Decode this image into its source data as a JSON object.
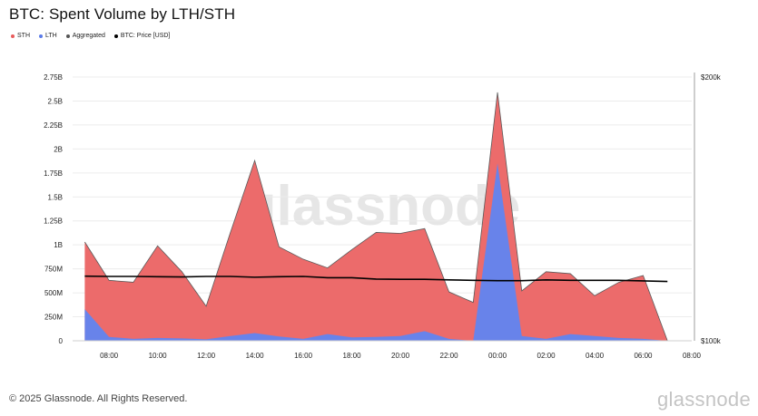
{
  "chart_data": {
    "type": "area",
    "title": "BTC: Spent Volume by LTH/STH",
    "legend": [
      {
        "name": "STH",
        "color": "#e85c5c"
      },
      {
        "name": "LTH",
        "color": "#5b7be8"
      },
      {
        "name": "Aggregated",
        "color": "#555555"
      },
      {
        "name": "BTC: Price [USD]",
        "color": "#000000"
      }
    ],
    "x_ticks": [
      "08:00",
      "10:00",
      "12:00",
      "14:00",
      "16:00",
      "18:00",
      "20:00",
      "22:00",
      "00:00",
      "02:00",
      "04:00",
      "06:00",
      "08:00"
    ],
    "x_hours": [
      7,
      8,
      9,
      10,
      11,
      12,
      13,
      14,
      15,
      16,
      17,
      18,
      19,
      20,
      21,
      22,
      23,
      24,
      25,
      26,
      27,
      28,
      29,
      30,
      31
    ],
    "y_left_ticks": [
      "0",
      "250M",
      "500M",
      "750M",
      "1B",
      "1.25B",
      "1.5B",
      "1.75B",
      "2B",
      "2.25B",
      "2.5B",
      "2.75B"
    ],
    "y_left_range": [
      0,
      2750000000
    ],
    "y_right_ticks": [
      "$100k",
      "$200k"
    ],
    "y_right_range": [
      100000,
      200000
    ],
    "series": [
      {
        "name": "Aggregated",
        "values": [
          1030000000,
          630000000,
          610000000,
          990000000,
          720000000,
          360000000,
          1130000000,
          1880000000,
          980000000,
          850000000,
          760000000,
          950000000,
          1130000000,
          1120000000,
          1170000000,
          510000000,
          400000000,
          2590000000,
          520000000,
          720000000,
          700000000,
          470000000,
          610000000,
          680000000,
          0
        ]
      },
      {
        "name": "LTH",
        "values": [
          330000000,
          40000000,
          20000000,
          30000000,
          25000000,
          15000000,
          50000000,
          80000000,
          45000000,
          20000000,
          70000000,
          35000000,
          40000000,
          50000000,
          100000000,
          20000000,
          0,
          1850000000,
          50000000,
          20000000,
          70000000,
          50000000,
          30000000,
          20000000,
          0
        ]
      },
      {
        "name": "BTC: Price [USD]",
        "values": [
          124500,
          124400,
          124400,
          124300,
          124200,
          124400,
          124400,
          124100,
          124300,
          124400,
          123900,
          123900,
          123400,
          123300,
          123300,
          123100,
          122900,
          122800,
          122800,
          123100,
          122900,
          122900,
          122900,
          122700,
          122500
        ]
      }
    ]
  },
  "watermark": "glassnode",
  "footer": {
    "copyright": "© 2025 Glassnode. All Rights Reserved.",
    "logo": "glassnode"
  }
}
